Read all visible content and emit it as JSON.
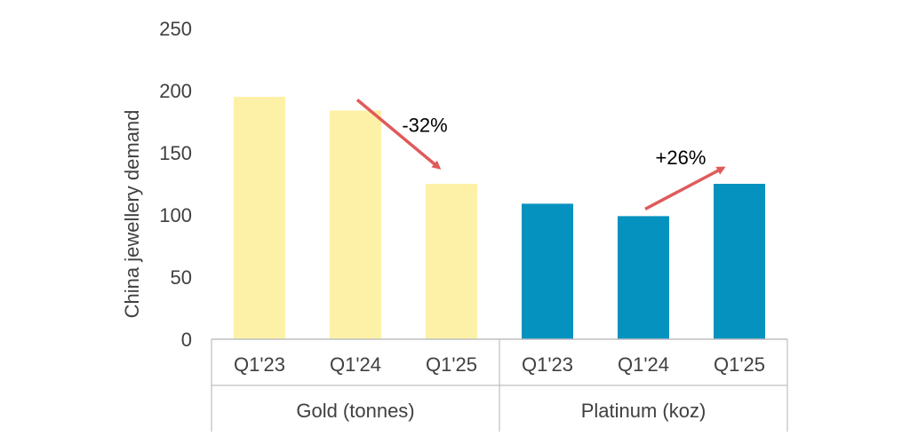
{
  "chart_data": {
    "type": "bar",
    "ylabel": "China jewellery demand",
    "ylim": [
      0,
      250
    ],
    "yticks": [
      0,
      50,
      100,
      150,
      200,
      250
    ],
    "grid": false,
    "legend": "none",
    "groups": [
      {
        "name": "Gold (tonnes)",
        "color": "#FDF1A8",
        "categories": [
          "Q1'23",
          "Q1'24",
          "Q1'25"
        ],
        "values": [
          195,
          184,
          125
        ]
      },
      {
        "name": "Platinum (koz)",
        "color": "#0592BF",
        "categories": [
          "Q1'23",
          "Q1'24",
          "Q1'25"
        ],
        "values": [
          109,
          99,
          125
        ]
      }
    ],
    "annotations": [
      {
        "text": "-32%",
        "group": "Gold (tonnes)",
        "direction": "down",
        "arrow_color": "#E05A5A"
      },
      {
        "text": "+26%",
        "group": "Platinum (koz)",
        "direction": "up",
        "arrow_color": "#E05A5A"
      }
    ]
  }
}
